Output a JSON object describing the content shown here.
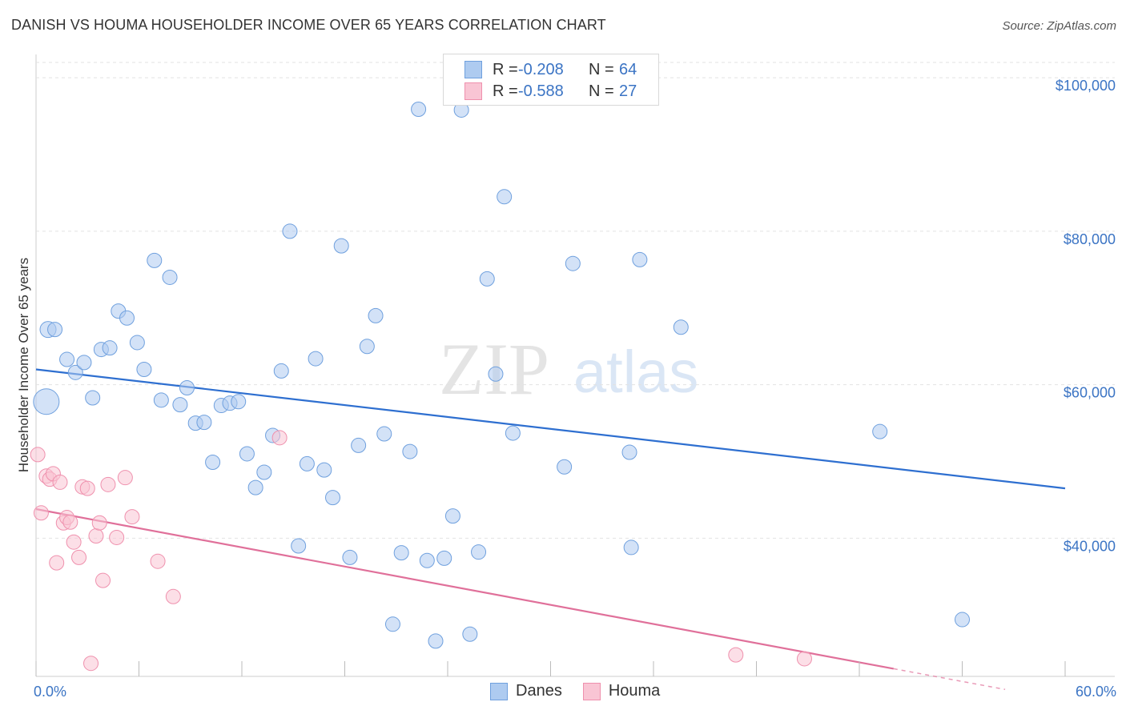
{
  "header": {
    "title": "DANISH VS HOUMA HOUSEHOLDER INCOME OVER 65 YEARS CORRELATION CHART",
    "source": "Source: ZipAtlas.com"
  },
  "watermark": {
    "zip": "ZIP",
    "atlas": "atlas"
  },
  "legend_top": {
    "rows": [
      {
        "r_label": "R =",
        "r_value": "-0.208",
        "n_label": "N =",
        "n_value": "64",
        "color": "#aecbf0",
        "border": "#6fa0de"
      },
      {
        "r_label": "R =",
        "r_value": "-0.588",
        "n_label": "N =",
        "n_value": "27",
        "color": "#f9c5d4",
        "border": "#ef90ad"
      }
    ]
  },
  "legend_bottom": {
    "items": [
      {
        "label": "Danes",
        "color": "#aecbf0",
        "border": "#6fa0de"
      },
      {
        "label": "Houma",
        "color": "#f9c5d4",
        "border": "#ef90ad"
      }
    ]
  },
  "chart_data": {
    "type": "scatter",
    "title": "DANISH VS HOUMA HOUSEHOLDER INCOME OVER 65 YEARS CORRELATION CHART",
    "xlabel": "",
    "ylabel": "Householder Income Over 65 years",
    "xlim": [
      0,
      60
    ],
    "ylim": [
      22000,
      102000
    ],
    "x_tick_labels": [
      "0.0%",
      "60.0%"
    ],
    "y_ticks": [
      40000,
      60000,
      80000,
      100000
    ],
    "y_tick_labels": [
      "$40,000",
      "$60,000",
      "$80,000",
      "$100,000"
    ],
    "grid": true,
    "legend_position": "bottom",
    "series": [
      {
        "name": "Danes",
        "color": "#aecbf0",
        "edge": "#6fa0de",
        "trend": {
          "x": [
            0,
            60
          ],
          "y": [
            62000,
            46500
          ],
          "color": "#2e6fd0"
        },
        "points": [
          [
            0.6,
            57.8,
            16
          ],
          [
            0.7,
            67.2,
            10
          ],
          [
            1.1,
            67.2,
            9
          ],
          [
            1.8,
            63.3,
            9
          ],
          [
            2.3,
            61.6,
            9
          ],
          [
            2.8,
            62.9,
            9
          ],
          [
            3.3,
            58.3,
            9
          ],
          [
            3.8,
            64.6,
            9
          ],
          [
            4.3,
            64.8,
            9
          ],
          [
            4.8,
            69.6,
            9
          ],
          [
            5.3,
            68.7,
            9
          ],
          [
            5.9,
            65.5,
            9
          ],
          [
            6.3,
            62.0,
            9
          ],
          [
            6.9,
            76.2,
            9
          ],
          [
            7.3,
            58.0,
            9
          ],
          [
            7.8,
            74.0,
            9
          ],
          [
            8.4,
            57.4,
            9
          ],
          [
            8.8,
            59.6,
            9
          ],
          [
            9.3,
            55.0,
            9
          ],
          [
            9.8,
            55.1,
            9
          ],
          [
            10.3,
            49.9,
            9
          ],
          [
            10.8,
            57.3,
            9
          ],
          [
            11.3,
            57.6,
            9
          ],
          [
            11.8,
            57.8,
            9
          ],
          [
            12.3,
            51.0,
            9
          ],
          [
            12.8,
            46.6,
            9
          ],
          [
            13.3,
            48.6,
            9
          ],
          [
            13.8,
            53.4,
            9
          ],
          [
            14.3,
            61.8,
            9
          ],
          [
            14.8,
            80.0,
            9
          ],
          [
            15.3,
            39.0,
            9
          ],
          [
            15.8,
            49.7,
            9
          ],
          [
            16.3,
            63.4,
            9
          ],
          [
            16.8,
            48.9,
            9
          ],
          [
            17.3,
            45.3,
            9
          ],
          [
            17.8,
            78.1,
            9
          ],
          [
            18.3,
            37.5,
            9
          ],
          [
            18.8,
            52.1,
            9
          ],
          [
            19.3,
            65.0,
            9
          ],
          [
            19.8,
            69.0,
            9
          ],
          [
            20.3,
            53.6,
            9
          ],
          [
            20.8,
            28.8,
            9
          ],
          [
            21.3,
            38.1,
            9
          ],
          [
            21.8,
            51.3,
            9
          ],
          [
            22.3,
            95.9,
            9
          ],
          [
            22.8,
            37.1,
            9
          ],
          [
            23.3,
            26.6,
            9
          ],
          [
            23.8,
            37.4,
            9
          ],
          [
            24.3,
            42.9,
            9
          ],
          [
            24.8,
            95.8,
            9
          ],
          [
            25.3,
            27.5,
            9
          ],
          [
            25.8,
            38.2,
            9
          ],
          [
            26.3,
            73.8,
            9
          ],
          [
            26.8,
            61.4,
            9
          ],
          [
            27.3,
            84.5,
            9
          ],
          [
            27.8,
            53.7,
            9
          ],
          [
            30.8,
            49.3,
            9
          ],
          [
            31.3,
            75.8,
            9
          ],
          [
            34.6,
            51.2,
            9
          ],
          [
            34.7,
            38.8,
            9
          ],
          [
            35.2,
            76.3,
            9
          ],
          [
            37.6,
            67.5,
            9
          ],
          [
            49.2,
            53.9,
            9
          ],
          [
            54.0,
            29.4,
            9
          ]
        ]
      },
      {
        "name": "Houma",
        "color": "#f9c5d4",
        "edge": "#ef90ad",
        "trend": {
          "x": [
            0,
            50
          ],
          "y": [
            43800,
            23000
          ],
          "dash_to": [
            56.5,
            20300
          ],
          "color": "#e0709a"
        },
        "points": [
          [
            0.1,
            50.9,
            9
          ],
          [
            0.3,
            43.3,
            9
          ],
          [
            0.6,
            48.1,
            9
          ],
          [
            0.8,
            47.7,
            9
          ],
          [
            1.0,
            48.4,
            9
          ],
          [
            1.2,
            36.8,
            9
          ],
          [
            1.4,
            47.3,
            9
          ],
          [
            1.6,
            42.0,
            9
          ],
          [
            1.8,
            42.7,
            9
          ],
          [
            2.0,
            42.1,
            9
          ],
          [
            2.2,
            39.5,
            9
          ],
          [
            2.5,
            37.5,
            9
          ],
          [
            2.7,
            46.7,
            9
          ],
          [
            3.0,
            46.5,
            9
          ],
          [
            3.2,
            23.7,
            9
          ],
          [
            3.5,
            40.3,
            9
          ],
          [
            3.7,
            42.0,
            9
          ],
          [
            3.9,
            34.5,
            9
          ],
          [
            4.2,
            47.0,
            9
          ],
          [
            4.7,
            40.1,
            9
          ],
          [
            5.2,
            47.9,
            9
          ],
          [
            5.6,
            42.8,
            9
          ],
          [
            7.1,
            37.0,
            9
          ],
          [
            8.0,
            32.4,
            9
          ],
          [
            14.2,
            53.1,
            9
          ],
          [
            40.8,
            24.8,
            9
          ],
          [
            44.8,
            24.3,
            9
          ]
        ]
      }
    ]
  }
}
